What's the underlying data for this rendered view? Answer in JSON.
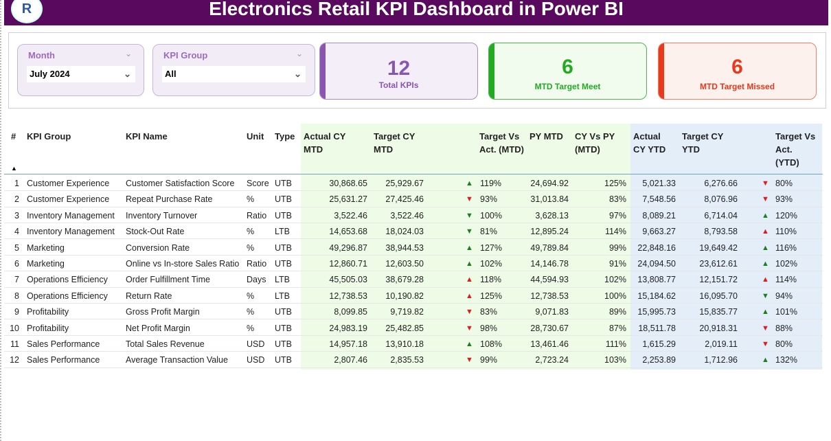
{
  "title": "Electronics Retail KPI Dashboard in Power BI",
  "logo_text": "R",
  "filters": [
    {
      "label": "Month",
      "value": "July 2024"
    },
    {
      "label": "KPI Group",
      "value": "All"
    }
  ],
  "cards": [
    {
      "value": "12",
      "label": "Total KPIs",
      "color": "#8a55b0"
    },
    {
      "value": "6",
      "label": "MTD Target Meet",
      "color": "#22aa22"
    },
    {
      "value": "6",
      "label": "MTD Target Missed",
      "color": "#e8391c"
    }
  ],
  "colors": {
    "up_good": "#1e7e1e",
    "down_bad": "#e01b1b"
  },
  "table": {
    "headers": [
      "#",
      "KPI Group",
      "KPI Name",
      "Unit",
      "Type",
      "Actual CY MTD",
      "Target CY MTD",
      "Target Vs Act. (MTD)",
      "PY MTD",
      "CY Vs PY (MTD)",
      "Actual CY YTD",
      "Target CY YTD",
      "Target Vs Act. (YTD)"
    ],
    "rows": [
      {
        "n": "1",
        "group": "Customer Experience",
        "name": "Customer Satisfaction Score",
        "unit": "Score",
        "type": "UTB",
        "act_mtd": "30,868.65",
        "tgt_mtd": "25,929.67",
        "mtd_dir": "up",
        "mtd_color": "green",
        "tva_mtd": "119%",
        "py_mtd": "24,694.92",
        "cyvpy": "125%",
        "act_ytd": "5,021.33",
        "tgt_ytd": "6,276.66",
        "ytd_dir": "down",
        "ytd_color": "red",
        "tva_ytd": "80%"
      },
      {
        "n": "2",
        "group": "Customer Experience",
        "name": "Repeat Purchase Rate",
        "unit": "%",
        "type": "UTB",
        "act_mtd": "25,631.27",
        "tgt_mtd": "27,425.46",
        "mtd_dir": "down",
        "mtd_color": "red",
        "tva_mtd": "93%",
        "py_mtd": "31,013.84",
        "cyvpy": "83%",
        "act_ytd": "7,548.56",
        "tgt_ytd": "8,076.96",
        "ytd_dir": "down",
        "ytd_color": "red",
        "tva_ytd": "93%"
      },
      {
        "n": "3",
        "group": "Inventory Management",
        "name": "Inventory Turnover",
        "unit": "Ratio",
        "type": "UTB",
        "act_mtd": "3,522.46",
        "tgt_mtd": "3,522.46",
        "mtd_dir": "down",
        "mtd_color": "green",
        "tva_mtd": "100%",
        "py_mtd": "3,628.13",
        "cyvpy": "97%",
        "act_ytd": "8,089.21",
        "tgt_ytd": "6,714.04",
        "ytd_dir": "up",
        "ytd_color": "green",
        "tva_ytd": "120%"
      },
      {
        "n": "4",
        "group": "Inventory Management",
        "name": "Stock-Out Rate",
        "unit": "%",
        "type": "LTB",
        "act_mtd": "14,653.68",
        "tgt_mtd": "18,024.03",
        "mtd_dir": "down",
        "mtd_color": "green",
        "tva_mtd": "81%",
        "py_mtd": "12,895.24",
        "cyvpy": "114%",
        "act_ytd": "9,663.27",
        "tgt_ytd": "8,793.58",
        "ytd_dir": "up",
        "ytd_color": "red",
        "tva_ytd": "110%"
      },
      {
        "n": "5",
        "group": "Marketing",
        "name": "Conversion Rate",
        "unit": "%",
        "type": "UTB",
        "act_mtd": "49,296.87",
        "tgt_mtd": "38,944.53",
        "mtd_dir": "up",
        "mtd_color": "green",
        "tva_mtd": "127%",
        "py_mtd": "49,789.84",
        "cyvpy": "99%",
        "act_ytd": "22,848.16",
        "tgt_ytd": "19,649.42",
        "ytd_dir": "up",
        "ytd_color": "green",
        "tva_ytd": "116%"
      },
      {
        "n": "6",
        "group": "Marketing",
        "name": "Online vs In-store Sales Ratio",
        "unit": "Ratio",
        "type": "UTB",
        "act_mtd": "12,860.71",
        "tgt_mtd": "12,603.50",
        "mtd_dir": "up",
        "mtd_color": "green",
        "tva_mtd": "102%",
        "py_mtd": "14,146.78",
        "cyvpy": "91%",
        "act_ytd": "24,094.50",
        "tgt_ytd": "23,612.61",
        "ytd_dir": "up",
        "ytd_color": "green",
        "tva_ytd": "102%"
      },
      {
        "n": "7",
        "group": "Operations Efficiency",
        "name": "Order Fulfillment Time",
        "unit": "Days",
        "type": "LTB",
        "act_mtd": "45,505.03",
        "tgt_mtd": "38,679.28",
        "mtd_dir": "up",
        "mtd_color": "red",
        "tva_mtd": "118%",
        "py_mtd": "44,594.93",
        "cyvpy": "102%",
        "act_ytd": "13,808.77",
        "tgt_ytd": "12,151.72",
        "ytd_dir": "up",
        "ytd_color": "red",
        "tva_ytd": "114%"
      },
      {
        "n": "8",
        "group": "Operations Efficiency",
        "name": "Return Rate",
        "unit": "%",
        "type": "LTB",
        "act_mtd": "12,738.53",
        "tgt_mtd": "10,190.82",
        "mtd_dir": "up",
        "mtd_color": "red",
        "tva_mtd": "125%",
        "py_mtd": "12,738.53",
        "cyvpy": "100%",
        "act_ytd": "15,184.62",
        "tgt_ytd": "16,095.70",
        "ytd_dir": "down",
        "ytd_color": "green",
        "tva_ytd": "94%"
      },
      {
        "n": "9",
        "group": "Profitability",
        "name": "Gross Profit Margin",
        "unit": "%",
        "type": "UTB",
        "act_mtd": "8,099.85",
        "tgt_mtd": "9,719.82",
        "mtd_dir": "down",
        "mtd_color": "red",
        "tva_mtd": "83%",
        "py_mtd": "9,071.83",
        "cyvpy": "89%",
        "act_ytd": "15,995.73",
        "tgt_ytd": "15,835.77",
        "ytd_dir": "up",
        "ytd_color": "green",
        "tva_ytd": "101%"
      },
      {
        "n": "10",
        "group": "Profitability",
        "name": "Net Profit Margin",
        "unit": "%",
        "type": "UTB",
        "act_mtd": "24,983.19",
        "tgt_mtd": "25,482.85",
        "mtd_dir": "down",
        "mtd_color": "red",
        "tva_mtd": "98%",
        "py_mtd": "28,730.67",
        "cyvpy": "87%",
        "act_ytd": "18,511.78",
        "tgt_ytd": "20,918.31",
        "ytd_dir": "down",
        "ytd_color": "red",
        "tva_ytd": "88%"
      },
      {
        "n": "11",
        "group": "Sales Performance",
        "name": "Total Sales Revenue",
        "unit": "USD",
        "type": "UTB",
        "act_mtd": "14,957.18",
        "tgt_mtd": "13,910.18",
        "mtd_dir": "up",
        "mtd_color": "green",
        "tva_mtd": "108%",
        "py_mtd": "13,461.46",
        "cyvpy": "111%",
        "act_ytd": "1,615.29",
        "tgt_ytd": "2,019.11",
        "ytd_dir": "down",
        "ytd_color": "red",
        "tva_ytd": "80%"
      },
      {
        "n": "12",
        "group": "Sales Performance",
        "name": "Average Transaction Value",
        "unit": "USD",
        "type": "UTB",
        "act_mtd": "2,807.46",
        "tgt_mtd": "2,835.53",
        "mtd_dir": "down",
        "mtd_color": "red",
        "tva_mtd": "99%",
        "py_mtd": "2,723.24",
        "cyvpy": "103%",
        "act_ytd": "2,253.89",
        "tgt_ytd": "1,712.96",
        "ytd_dir": "up",
        "ytd_color": "green",
        "tva_ytd": "132%"
      }
    ]
  }
}
